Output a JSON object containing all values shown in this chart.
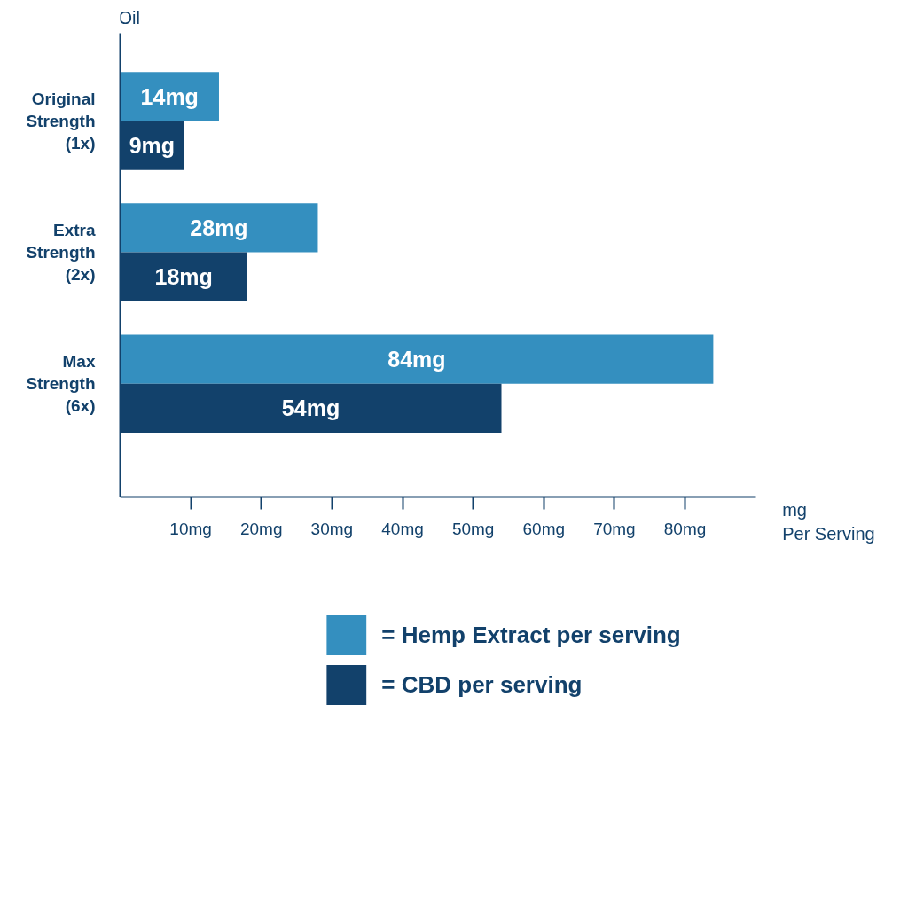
{
  "chart_data": {
    "type": "bar",
    "orientation": "horizontal",
    "ylabel": "Oil",
    "xlabel": "mg Per Serving",
    "categories": [
      "Original Strength (1x)",
      "Extra Strength (2x)",
      "Max Strength (6x)"
    ],
    "series": [
      {
        "name": "= Hemp Extract per serving",
        "color": "#348fbf",
        "values": [
          14,
          28,
          84
        ],
        "value_labels": [
          "14mg",
          "28mg",
          "84mg"
        ]
      },
      {
        "name": "= CBD per serving",
        "color": "#12416b",
        "values": [
          9,
          18,
          54
        ],
        "value_labels": [
          "9mg",
          "18mg",
          "54mg"
        ]
      }
    ],
    "xlim": [
      0,
      90
    ],
    "xticks": [
      {
        "value": 10,
        "label": "10mg"
      },
      {
        "value": 20,
        "label": "20mg"
      },
      {
        "value": 30,
        "label": "30mg"
      },
      {
        "value": 40,
        "label": "40mg"
      },
      {
        "value": 50,
        "label": "50mg"
      },
      {
        "value": 60,
        "label": "60mg"
      },
      {
        "value": 70,
        "label": "70mg"
      },
      {
        "value": 80,
        "label": "80mg"
      }
    ],
    "grid": false,
    "legend": "bottom"
  }
}
